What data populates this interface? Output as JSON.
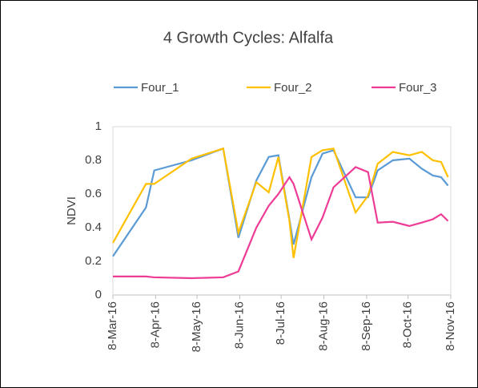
{
  "chart_data": {
    "type": "line",
    "title": "4 Growth Cycles: Alfalfa",
    "y_label": "NDVI",
    "x": [
      "2016-03-08",
      "2016-04-01",
      "2016-04-07",
      "2016-05-04",
      "2016-05-27",
      "2016-06-07",
      "2016-06-20",
      "2016-06-29",
      "2016-07-06",
      "2016-07-14",
      "2016-07-17",
      "2016-07-30",
      "2016-08-07",
      "2016-08-15",
      "2016-08-31",
      "2016-09-09",
      "2016-09-16",
      "2016-09-27",
      "2016-10-09",
      "2016-10-18",
      "2016-10-26",
      "2016-11-01",
      "2016-11-06"
    ],
    "series": [
      {
        "name": "Four_1",
        "color": "#5b9bd5",
        "values": [
          0.23,
          0.52,
          0.74,
          0.8,
          0.87,
          0.34,
          0.68,
          0.82,
          0.83,
          0.45,
          0.3,
          0.7,
          0.84,
          0.86,
          0.58,
          0.58,
          0.74,
          0.8,
          0.81,
          0.75,
          0.71,
          0.7,
          0.65
        ]
      },
      {
        "name": "Four_2",
        "color": "#ffc000",
        "values": [
          0.31,
          0.66,
          0.66,
          0.81,
          0.87,
          0.37,
          0.67,
          0.61,
          0.82,
          0.44,
          0.22,
          0.82,
          0.86,
          0.87,
          0.49,
          0.59,
          0.78,
          0.85,
          0.83,
          0.85,
          0.8,
          0.79,
          0.7
        ]
      },
      {
        "name": "Four_3",
        "color": "#ee3c96",
        "values": [
          0.11,
          0.11,
          0.105,
          0.1,
          0.105,
          0.14,
          0.4,
          0.53,
          0.6,
          0.7,
          0.66,
          0.33,
          0.46,
          0.64,
          0.76,
          0.73,
          0.43,
          0.435,
          0.41,
          0.43,
          0.45,
          0.48,
          0.44
        ]
      }
    ],
    "xlim": [
      "2016-03-08",
      "2016-11-08"
    ],
    "xticks": [
      {
        "value": "2016-03-08",
        "label": "8-Mar-16"
      },
      {
        "value": "2016-04-08",
        "label": "8-Apr-16"
      },
      {
        "value": "2016-05-08",
        "label": "8-May-16"
      },
      {
        "value": "2016-06-08",
        "label": "8-Jun-16"
      },
      {
        "value": "2016-07-08",
        "label": "8-Jul-16"
      },
      {
        "value": "2016-08-08",
        "label": "8-Aug-16"
      },
      {
        "value": "2016-09-08",
        "label": "8-Sep-16"
      },
      {
        "value": "2016-10-08",
        "label": "8-Oct-16"
      },
      {
        "value": "2016-11-08",
        "label": "8-Nov-16"
      }
    ],
    "ylim": [
      0,
      1
    ],
    "yticks": [
      0,
      0.2,
      0.4,
      0.6,
      0.8,
      1
    ],
    "grid": false,
    "legend": "top"
  }
}
